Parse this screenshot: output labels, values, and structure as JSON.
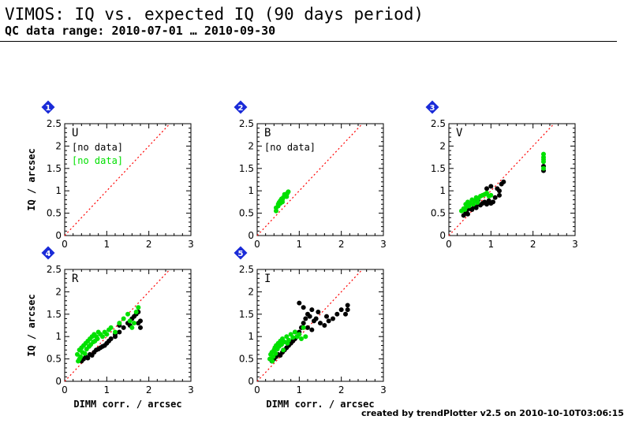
{
  "header": {
    "title": "VIMOS: IQ vs. expected IQ (90 days period)",
    "subtitle": "QC data range: 2010-07-01 … 2010-09-30"
  },
  "footer": {
    "credit": "created by trendPlotter v2.5 on 2010-10-10T03:06:15"
  },
  "colors": {
    "black_series": "#000000",
    "green_series": "#00e000",
    "badge": "#1a2bd8",
    "reference": "#ff0000"
  },
  "chart_data": [
    {
      "type": "scatter",
      "badge": "1",
      "filter": "U",
      "xlim": [
        0,
        3
      ],
      "ylim": [
        0,
        2.5
      ],
      "xticks": [
        "0",
        "1",
        "2",
        "3"
      ],
      "yticks": [
        "0",
        "0.5",
        "1",
        "1.5",
        "2",
        "2.5"
      ],
      "ylabel": "IQ / arcsec",
      "xlabel": "",
      "no_data": [
        "[no data]",
        "[no data]"
      ],
      "reference_line": "y = x",
      "series": [
        {
          "color": "#000000",
          "points": []
        },
        {
          "color": "#00e000",
          "points": []
        }
      ]
    },
    {
      "type": "scatter",
      "badge": "2",
      "filter": "B",
      "xlim": [
        0,
        3
      ],
      "ylim": [
        0,
        2.5
      ],
      "xticks": [
        "0",
        "1",
        "2",
        "3"
      ],
      "yticks": [
        "0",
        "0.5",
        "1",
        "1.5",
        "2",
        "2.5"
      ],
      "ylabel": "",
      "xlabel": "",
      "no_data": [
        "[no data]"
      ],
      "reference_line": "y = x",
      "series": [
        {
          "color": "#000000",
          "points": []
        },
        {
          "color": "#00e000",
          "points": [
            [
              0.45,
              0.55
            ],
            [
              0.45,
              0.62
            ],
            [
              0.5,
              0.7
            ],
            [
              0.52,
              0.74
            ],
            [
              0.55,
              0.78
            ],
            [
              0.58,
              0.82
            ],
            [
              0.6,
              0.8
            ],
            [
              0.62,
              0.85
            ],
            [
              0.65,
              0.88
            ],
            [
              0.68,
              0.9
            ],
            [
              0.7,
              0.92
            ],
            [
              0.72,
              0.95
            ],
            [
              0.74,
              0.98
            ],
            [
              0.6,
              0.75
            ],
            [
              0.55,
              0.72
            ],
            [
              0.7,
              0.87
            ],
            [
              0.5,
              0.66
            ],
            [
              0.65,
              0.92
            ]
          ]
        }
      ]
    },
    {
      "type": "scatter",
      "badge": "3",
      "filter": "V",
      "xlim": [
        0,
        3
      ],
      "ylim": [
        0,
        2.5
      ],
      "xticks": [
        "0",
        "1",
        "2",
        "3"
      ],
      "yticks": [
        "0",
        "0.5",
        "1",
        "1.5",
        "2",
        "2.5"
      ],
      "ylabel": "",
      "xlabel": "",
      "no_data": [],
      "reference_line": "y = x",
      "series": [
        {
          "color": "#000000",
          "points": [
            [
              0.35,
              0.45
            ],
            [
              0.4,
              0.5
            ],
            [
              0.42,
              0.55
            ],
            [
              0.45,
              0.48
            ],
            [
              0.5,
              0.6
            ],
            [
              0.55,
              0.58
            ],
            [
              0.6,
              0.65
            ],
            [
              0.65,
              0.62
            ],
            [
              0.7,
              0.7
            ],
            [
              0.75,
              0.68
            ],
            [
              0.8,
              0.72
            ],
            [
              0.85,
              0.75
            ],
            [
              0.9,
              0.7
            ],
            [
              0.95,
              0.78
            ],
            [
              1.0,
              0.72
            ],
            [
              1.05,
              0.75
            ],
            [
              1.1,
              0.85
            ],
            [
              1.15,
              1.05
            ],
            [
              1.2,
              1.0
            ],
            [
              1.25,
              1.15
            ],
            [
              1.3,
              1.2
            ],
            [
              1.2,
              0.9
            ],
            [
              0.9,
              1.05
            ],
            [
              1.0,
              1.1
            ],
            [
              0.7,
              0.8
            ],
            [
              2.25,
              1.55
            ],
            [
              2.25,
              1.45
            ]
          ]
        },
        {
          "color": "#00e000",
          "points": [
            [
              0.3,
              0.55
            ],
            [
              0.35,
              0.6
            ],
            [
              0.4,
              0.7
            ],
            [
              0.42,
              0.65
            ],
            [
              0.45,
              0.75
            ],
            [
              0.5,
              0.72
            ],
            [
              0.55,
              0.8
            ],
            [
              0.6,
              0.78
            ],
            [
              0.65,
              0.85
            ],
            [
              0.7,
              0.82
            ],
            [
              0.75,
              0.88
            ],
            [
              0.8,
              0.9
            ],
            [
              0.85,
              0.92
            ],
            [
              0.9,
              0.95
            ],
            [
              0.95,
              0.88
            ],
            [
              1.0,
              0.9
            ],
            [
              0.38,
              0.58
            ],
            [
              0.48,
              0.66
            ],
            [
              0.58,
              0.7
            ],
            [
              0.68,
              0.74
            ],
            [
              2.25,
              1.65
            ],
            [
              2.25,
              1.75
            ],
            [
              2.25,
              1.82
            ],
            [
              2.25,
              1.7
            ],
            [
              2.25,
              1.5
            ]
          ]
        }
      ]
    },
    {
      "type": "scatter",
      "badge": "4",
      "filter": "R",
      "xlim": [
        0,
        3
      ],
      "ylim": [
        0,
        2.5
      ],
      "xticks": [
        "0",
        "1",
        "2",
        "3"
      ],
      "yticks": [
        "0",
        "0.5",
        "1",
        "1.5",
        "2",
        "2.5"
      ],
      "ylabel": "IQ / arcsec",
      "xlabel": "DIMM corr. / arcsec",
      "no_data": [],
      "reference_line": "y = x",
      "series": [
        {
          "color": "#000000",
          "points": [
            [
              0.4,
              0.45
            ],
            [
              0.45,
              0.5
            ],
            [
              0.5,
              0.55
            ],
            [
              0.55,
              0.52
            ],
            [
              0.6,
              0.6
            ],
            [
              0.65,
              0.58
            ],
            [
              0.7,
              0.65
            ],
            [
              0.75,
              0.7
            ],
            [
              0.8,
              0.72
            ],
            [
              0.85,
              0.75
            ],
            [
              0.9,
              0.78
            ],
            [
              0.95,
              0.8
            ],
            [
              1.0,
              0.85
            ],
            [
              1.05,
              0.9
            ],
            [
              1.1,
              0.95
            ],
            [
              1.2,
              1.0
            ],
            [
              1.3,
              1.1
            ],
            [
              1.4,
              1.2
            ],
            [
              1.5,
              1.3
            ],
            [
              1.55,
              1.25
            ],
            [
              1.6,
              1.4
            ],
            [
              1.65,
              1.45
            ],
            [
              1.7,
              1.5
            ],
            [
              1.75,
              1.55
            ],
            [
              1.75,
              1.3
            ],
            [
              1.8,
              1.35
            ],
            [
              1.8,
              1.2
            ],
            [
              1.2,
              1.05
            ],
            [
              1.3,
              1.25
            ]
          ]
        },
        {
          "color": "#00e000",
          "points": [
            [
              0.3,
              0.6
            ],
            [
              0.35,
              0.7
            ],
            [
              0.4,
              0.75
            ],
            [
              0.42,
              0.65
            ],
            [
              0.45,
              0.8
            ],
            [
              0.5,
              0.85
            ],
            [
              0.52,
              0.72
            ],
            [
              0.55,
              0.9
            ],
            [
              0.6,
              0.95
            ],
            [
              0.62,
              0.82
            ],
            [
              0.65,
              1.0
            ],
            [
              0.7,
              1.05
            ],
            [
              0.72,
              0.9
            ],
            [
              0.75,
              1.0
            ],
            [
              0.8,
              1.1
            ],
            [
              0.85,
              1.05
            ],
            [
              0.9,
              1.0
            ],
            [
              0.95,
              1.1
            ],
            [
              1.0,
              1.05
            ],
            [
              1.05,
              1.15
            ],
            [
              1.1,
              1.2
            ],
            [
              1.2,
              1.1
            ],
            [
              1.3,
              1.3
            ],
            [
              1.4,
              1.4
            ],
            [
              1.5,
              1.5
            ],
            [
              1.55,
              1.35
            ],
            [
              1.6,
              1.2
            ],
            [
              1.65,
              1.3
            ],
            [
              1.7,
              1.55
            ],
            [
              1.75,
              1.65
            ],
            [
              0.38,
              0.55
            ],
            [
              0.48,
              0.62
            ],
            [
              0.58,
              0.78
            ],
            [
              0.68,
              0.88
            ],
            [
              0.78,
              0.95
            ],
            [
              0.35,
              0.5
            ],
            [
              0.32,
              0.45
            ]
          ]
        }
      ]
    },
    {
      "type": "scatter",
      "badge": "5",
      "filter": "I",
      "xlim": [
        0,
        3
      ],
      "ylim": [
        0,
        2.5
      ],
      "xticks": [
        "0",
        "1",
        "2",
        "3"
      ],
      "yticks": [
        "0",
        "0.5",
        "1",
        "1.5",
        "2",
        "2.5"
      ],
      "ylabel": "",
      "xlabel": "DIMM corr. / arcsec",
      "no_data": [],
      "reference_line": "y = x",
      "series": [
        {
          "color": "#000000",
          "points": [
            [
              0.35,
              0.45
            ],
            [
              0.4,
              0.5
            ],
            [
              0.45,
              0.55
            ],
            [
              0.5,
              0.6
            ],
            [
              0.55,
              0.58
            ],
            [
              0.6,
              0.65
            ],
            [
              0.65,
              0.7
            ],
            [
              0.7,
              0.75
            ],
            [
              0.75,
              0.8
            ],
            [
              0.8,
              0.85
            ],
            [
              0.85,
              0.9
            ],
            [
              0.9,
              0.95
            ],
            [
              0.95,
              1.0
            ],
            [
              1.0,
              1.1
            ],
            [
              1.05,
              1.2
            ],
            [
              1.1,
              1.3
            ],
            [
              1.15,
              1.4
            ],
            [
              1.2,
              1.5
            ],
            [
              1.25,
              1.45
            ],
            [
              1.3,
              1.6
            ],
            [
              1.35,
              1.35
            ],
            [
              1.4,
              1.4
            ],
            [
              1.5,
              1.3
            ],
            [
              1.6,
              1.25
            ],
            [
              1.7,
              1.35
            ],
            [
              1.8,
              1.4
            ],
            [
              1.9,
              1.5
            ],
            [
              2.0,
              1.6
            ],
            [
              2.1,
              1.5
            ],
            [
              2.15,
              1.7
            ],
            [
              2.15,
              1.6
            ],
            [
              1.0,
              1.75
            ],
            [
              1.1,
              1.65
            ],
            [
              1.2,
              1.2
            ],
            [
              1.3,
              1.15
            ],
            [
              0.9,
              1.1
            ],
            [
              1.45,
              1.55
            ],
            [
              1.65,
              1.45
            ]
          ]
        },
        {
          "color": "#00e000",
          "points": [
            [
              0.3,
              0.5
            ],
            [
              0.32,
              0.6
            ],
            [
              0.35,
              0.65
            ],
            [
              0.38,
              0.55
            ],
            [
              0.4,
              0.7
            ],
            [
              0.42,
              0.75
            ],
            [
              0.45,
              0.8
            ],
            [
              0.48,
              0.72
            ],
            [
              0.5,
              0.85
            ],
            [
              0.52,
              0.78
            ],
            [
              0.55,
              0.9
            ],
            [
              0.58,
              0.82
            ],
            [
              0.6,
              0.95
            ],
            [
              0.65,
              0.88
            ],
            [
              0.7,
              1.0
            ],
            [
              0.75,
              0.92
            ],
            [
              0.8,
              1.05
            ],
            [
              0.85,
              0.98
            ],
            [
              0.9,
              1.1
            ],
            [
              0.95,
              1.0
            ],
            [
              1.0,
              1.05
            ],
            [
              1.05,
              0.95
            ],
            [
              1.1,
              1.2
            ],
            [
              1.15,
              1.0
            ],
            [
              0.36,
              0.45
            ],
            [
              0.44,
              0.62
            ],
            [
              0.62,
              0.7
            ],
            [
              0.72,
              0.85
            ]
          ]
        }
      ]
    }
  ]
}
